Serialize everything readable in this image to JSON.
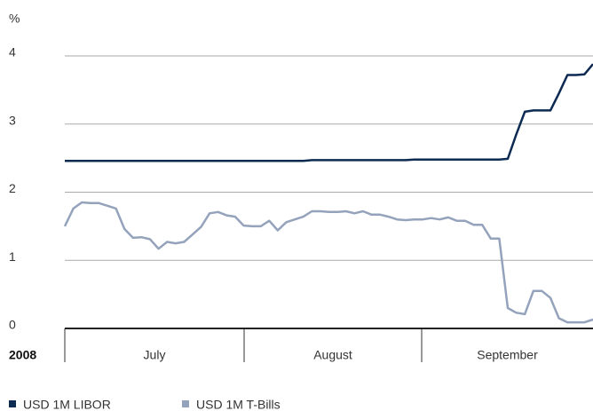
{
  "chart_data": {
    "type": "line",
    "unit_label": "%",
    "year_label": "2008",
    "month_labels": [
      "July",
      "August",
      "September"
    ],
    "ylim": [
      0,
      4
    ],
    "yticks": [
      0,
      1,
      2,
      3,
      4
    ],
    "grid": true,
    "series": [
      {
        "name": "USD 1M LIBOR",
        "color": "#0d2a52",
        "values": [
          2.46,
          2.46,
          2.46,
          2.46,
          2.46,
          2.46,
          2.46,
          2.46,
          2.46,
          2.46,
          2.46,
          2.46,
          2.46,
          2.46,
          2.46,
          2.46,
          2.46,
          2.46,
          2.46,
          2.46,
          2.46,
          2.46,
          2.46,
          2.46,
          2.46,
          2.46,
          2.46,
          2.46,
          2.46,
          2.47,
          2.47,
          2.47,
          2.47,
          2.47,
          2.47,
          2.47,
          2.47,
          2.47,
          2.47,
          2.47,
          2.47,
          2.48,
          2.48,
          2.48,
          2.48,
          2.48,
          2.48,
          2.48,
          2.48,
          2.48,
          2.48,
          2.48,
          2.49,
          2.85,
          3.18,
          3.2,
          3.2,
          3.2,
          3.45,
          3.72,
          3.72,
          3.73,
          3.88
        ]
      },
      {
        "name": "USD 1M T-Bills",
        "color": "#94a3bb",
        "values": [
          1.5,
          1.76,
          1.85,
          1.84,
          1.84,
          1.8,
          1.76,
          1.46,
          1.33,
          1.34,
          1.31,
          1.17,
          1.27,
          1.25,
          1.27,
          1.38,
          1.49,
          1.69,
          1.71,
          1.66,
          1.64,
          1.51,
          1.5,
          1.5,
          1.58,
          1.44,
          1.56,
          1.6,
          1.64,
          1.72,
          1.72,
          1.71,
          1.71,
          1.72,
          1.69,
          1.72,
          1.67,
          1.67,
          1.64,
          1.6,
          1.59,
          1.6,
          1.6,
          1.62,
          1.6,
          1.63,
          1.58,
          1.58,
          1.52,
          1.52,
          1.32,
          1.32,
          0.3,
          0.23,
          0.21,
          0.55,
          0.55,
          0.45,
          0.15,
          0.09,
          0.09,
          0.09,
          0.13
        ]
      }
    ]
  }
}
